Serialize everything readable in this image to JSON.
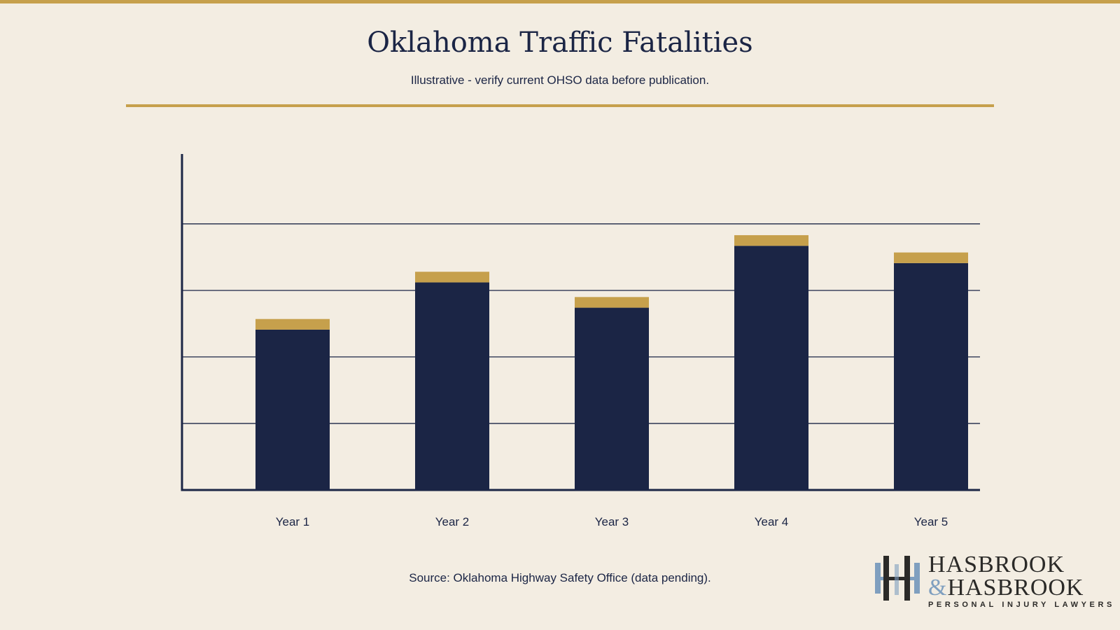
{
  "header": {
    "title": "Oklahoma Traffic Fatalities",
    "subtitle": "Illustrative - verify current OHSO data before publication."
  },
  "footer": {
    "source": "Source: Oklahoma Highway Safety Office (data pending)."
  },
  "logo": {
    "line1": "Hasbrook",
    "ampersand": "&",
    "line2": "Hasbrook",
    "tagline": "PERSONAL INJURY LAWYERS"
  },
  "colors": {
    "background": "#f3ede2",
    "navy": "#1b2545",
    "gold": "#c6a04c",
    "logo_blue": "#7f9fbf"
  },
  "chart_data": {
    "type": "bar",
    "stacked": true,
    "categories": [
      "Year 1",
      "Year 2",
      "Year 3",
      "Year 4",
      "Year 5"
    ],
    "series": [
      {
        "values": [
          2.41,
          3.12,
          2.74,
          3.67,
          3.41
        ],
        "color": "#1b2545"
      },
      {
        "values": [
          0.16,
          0.16,
          0.16,
          0.16,
          0.16
        ],
        "color": "#c6a04c"
      }
    ],
    "title": "Oklahoma Traffic Fatalities",
    "xlabel": "",
    "ylabel": "",
    "ylim": [
      0,
      5.05
    ],
    "gridlines": [
      1,
      2,
      3,
      4
    ],
    "y_tick_labels_shown": false,
    "grid": true,
    "legend": "none"
  }
}
